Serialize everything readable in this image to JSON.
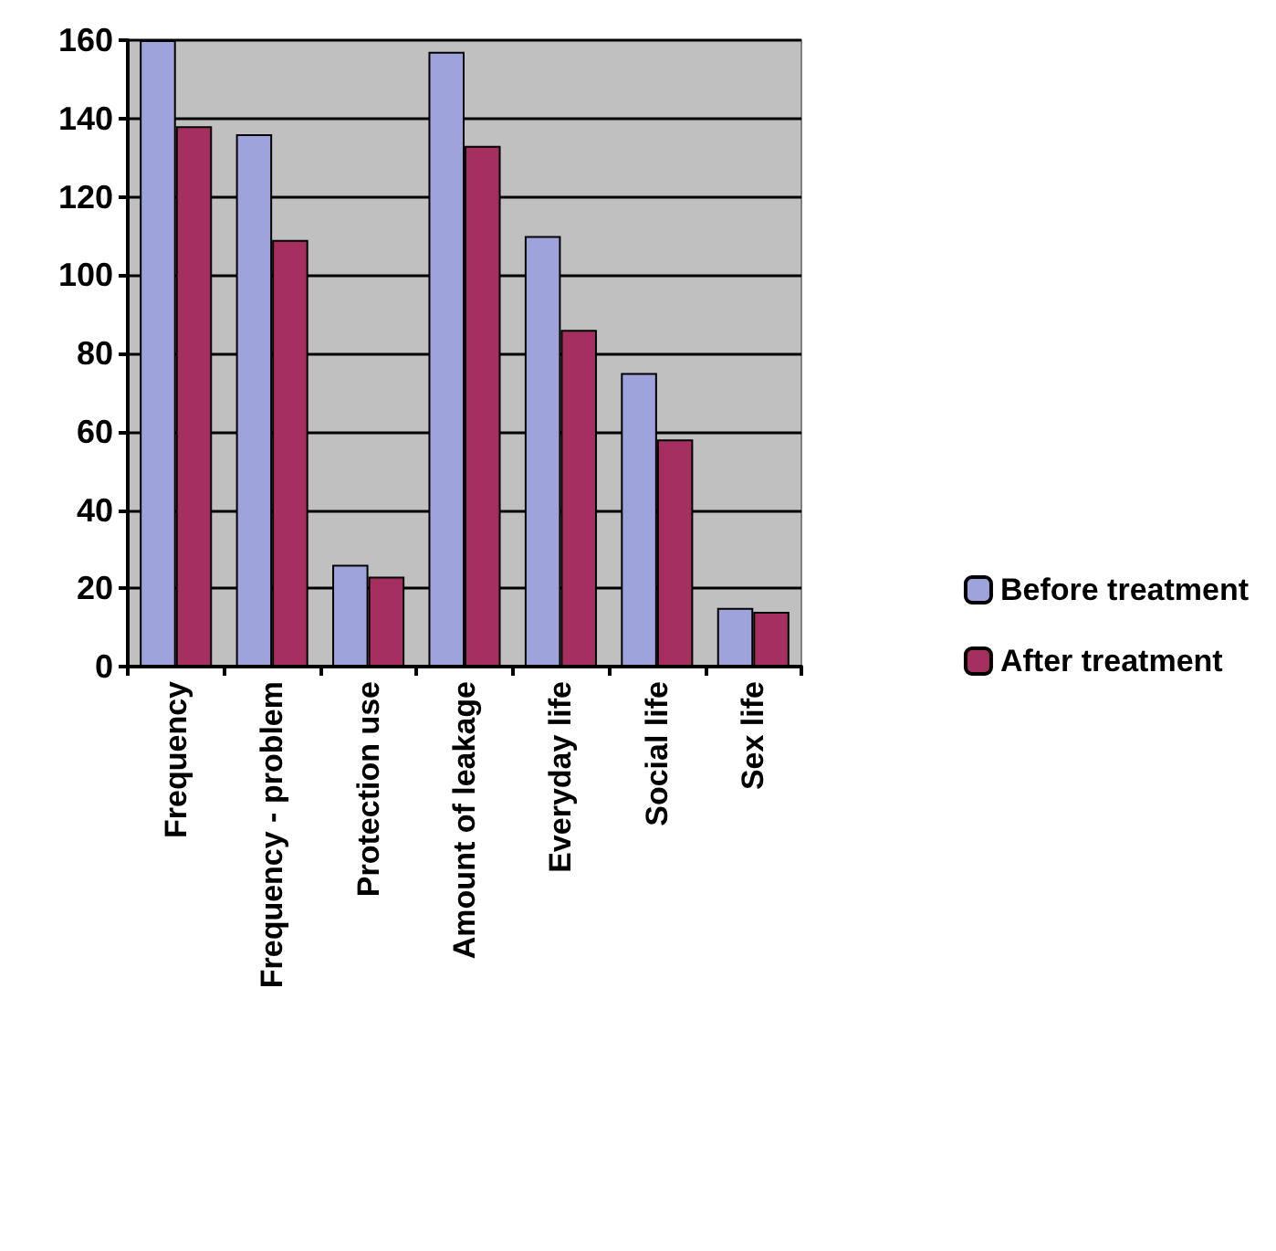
{
  "chart_data": {
    "type": "bar",
    "categories": [
      "Frequency",
      "Frequency - problem",
      "Protection use",
      "Amount of leakage",
      "Everyday life",
      "Social life",
      "Sex life"
    ],
    "series": [
      {
        "name": "Before treatment",
        "color": "#9fa3dc",
        "values": [
          160,
          136,
          26,
          157,
          110,
          75,
          15
        ]
      },
      {
        "name": "After treatment",
        "color": "#a5305f",
        "values": [
          138,
          109,
          23,
          133,
          86,
          58,
          14
        ]
      }
    ],
    "ylim": [
      0,
      160
    ],
    "yticks": [
      0,
      20,
      40,
      60,
      80,
      100,
      120,
      140,
      160
    ],
    "grid": "y",
    "legend": "right"
  }
}
